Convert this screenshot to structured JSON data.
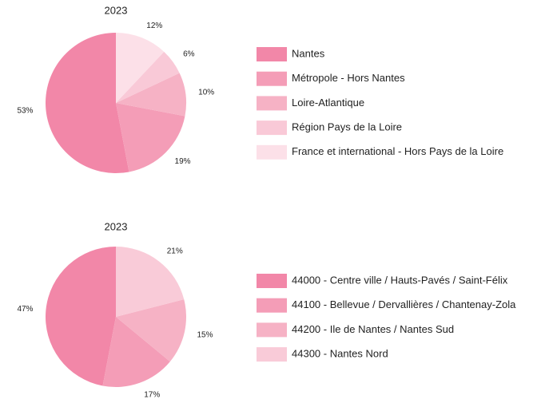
{
  "chart_data": [
    {
      "type": "pie",
      "title": "2023",
      "categories": [
        "Nantes",
        "Métropole - Hors Nantes",
        "Loire-Atlantique",
        "Région Pays de la Loire",
        "France et international - Hors Pays de la Loire"
      ],
      "values": [
        53,
        19,
        10,
        6,
        12
      ],
      "value_labels": [
        "53%",
        "19%",
        "10%",
        "6%",
        "12%"
      ],
      "colors": [
        "#f287a8",
        "#f49db7",
        "#f6b2c5",
        "#f9c9d7",
        "#fce0e8"
      ]
    },
    {
      "type": "pie",
      "title": "2023",
      "categories": [
        "44000 - Centre ville / Hauts-Pavés / Saint-Félix",
        "44100 - Bellevue / Dervallières / Chantenay-Zola",
        "44200 - Ile de Nantes / Nantes Sud",
        "44300 - Nantes Nord"
      ],
      "values": [
        47,
        17,
        15,
        21
      ],
      "value_labels": [
        "47%",
        "17%",
        "15%",
        "21%"
      ],
      "colors": [
        "#f287a8",
        "#f49db7",
        "#f6b2c5",
        "#f9cbd8"
      ]
    }
  ]
}
